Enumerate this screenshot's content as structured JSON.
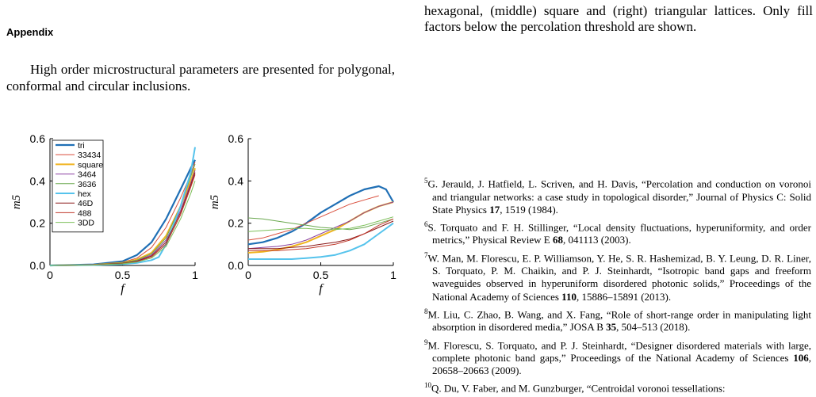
{
  "appendix": {
    "heading": "Appendix",
    "paragraph": "High order microstructural parameters are presented for polygonal, conformal and circular inclusions."
  },
  "caption_tail": "hexagonal, (middle) square and (right) triangular lattices. Only fill factors below the percolation threshold are shown.",
  "references": [
    {
      "num": "5",
      "text": "G. Jerauld, J. Hatfield, L. Scriven,  and H. Davis, “Percolation and conduction on voronoi and triangular networks: a case study in topological disorder,” Journal of Physics C: Solid State Physics ",
      "vol": "17",
      "rest": ", 1519 (1984)."
    },
    {
      "num": "6",
      "text": "S. Torquato and F. H. Stillinger, “Local density fluctuations, hyperuniformity, and order metrics,” Physical Review E ",
      "vol": "68",
      "rest": ", 041113 (2003)."
    },
    {
      "num": "7",
      "text": "W. Man, M. Florescu, E. P. Williamson, Y. He, S. R. Hashemizad, B. Y. Leung, D. R. Liner, S. Torquato, P. M. Chaikin,  and P. J. Steinhardt, “Isotropic band gaps and freeform waveguides observed in hyperuniform disordered photonic solids,” Proceedings of the National Academy of Sciences ",
      "vol": "110",
      "rest": ", 15886–15891 (2013)."
    },
    {
      "num": "8",
      "text": "M. Liu, C. Zhao, B. Wang,  and X. Fang, “Role of short-range order in manipulating light absorption in disordered media,” JOSA B ",
      "vol": "35",
      "rest": ", 504–513 (2018)."
    },
    {
      "num": "9",
      "text": "M. Florescu, S. Torquato,  and P. J. Steinhardt, “Designer disordered materials with large, complete photonic band gaps,” Proceedings of the National Academy of Sciences ",
      "vol": "106",
      "rest": ", 20658–20663 (2009)."
    },
    {
      "num": "10",
      "text": "Q. Du, V. Faber,  and M. Gunzburger, “Centroidal voronoi tessellations:",
      "vol": "",
      "rest": ""
    }
  ],
  "chart_data": [
    {
      "type": "line",
      "xlabel": "f",
      "ylabel": "m5",
      "xlim": [
        0,
        1
      ],
      "ylim": [
        0,
        0.6
      ],
      "xticks": [
        "0",
        "0.5",
        "1"
      ],
      "yticks": [
        "0.0",
        "0.2",
        "0.4",
        "0.6"
      ],
      "legend_position": "top-left",
      "series": [
        {
          "name": "tri",
          "color": "#1f6fb5",
          "width": 2.2,
          "x": [
            0,
            0.3,
            0.5,
            0.6,
            0.7,
            0.8,
            0.9,
            0.97,
            1.0
          ],
          "y": [
            0,
            0.005,
            0.02,
            0.05,
            0.11,
            0.22,
            0.36,
            0.46,
            0.5
          ]
        },
        {
          "name": "33434",
          "color": "#d94f3d",
          "width": 1,
          "x": [
            0,
            0.3,
            0.5,
            0.6,
            0.7,
            0.8,
            0.9,
            0.97,
            1.0
          ],
          "y": [
            0,
            0.004,
            0.015,
            0.035,
            0.085,
            0.18,
            0.32,
            0.43,
            0.49
          ]
        },
        {
          "name": "square",
          "color": "#f0b420",
          "width": 2,
          "x": [
            0,
            0.3,
            0.5,
            0.6,
            0.7,
            0.8,
            0.9,
            0.97,
            1.0
          ],
          "y": [
            0,
            0.003,
            0.012,
            0.028,
            0.06,
            0.14,
            0.28,
            0.4,
            0.46
          ]
        },
        {
          "name": "3464",
          "color": "#8a3fa0",
          "width": 1,
          "x": [
            0,
            0.3,
            0.5,
            0.6,
            0.7,
            0.8,
            0.9,
            0.97,
            1.0
          ],
          "y": [
            0,
            0.003,
            0.01,
            0.022,
            0.05,
            0.12,
            0.26,
            0.39,
            0.45
          ]
        },
        {
          "name": "3636",
          "color": "#6aa84f",
          "width": 1,
          "x": [
            0,
            0.3,
            0.5,
            0.6,
            0.7,
            0.8,
            0.9,
            0.97,
            1.0
          ],
          "y": [
            0,
            0.004,
            0.012,
            0.025,
            0.055,
            0.13,
            0.28,
            0.42,
            0.48
          ]
        },
        {
          "name": "hex",
          "color": "#55c3ec",
          "width": 2,
          "x": [
            0,
            0.3,
            0.5,
            0.6,
            0.7,
            0.75,
            0.8,
            0.9,
            0.97,
            1.0
          ],
          "y": [
            0,
            0.002,
            0.006,
            0.012,
            0.025,
            0.04,
            0.1,
            0.28,
            0.44,
            0.56
          ]
        },
        {
          "name": "46D",
          "color": "#8b1a1a",
          "width": 1,
          "x": [
            0,
            0.3,
            0.5,
            0.6,
            0.7,
            0.8,
            0.9,
            0.97,
            1.0
          ],
          "y": [
            0,
            0.003,
            0.01,
            0.02,
            0.045,
            0.11,
            0.25,
            0.38,
            0.44
          ]
        },
        {
          "name": "488",
          "color": "#c0392b",
          "width": 1,
          "x": [
            0,
            0.3,
            0.5,
            0.6,
            0.7,
            0.8,
            0.9,
            0.97,
            1.0
          ],
          "y": [
            0,
            0.003,
            0.009,
            0.018,
            0.04,
            0.1,
            0.24,
            0.37,
            0.43
          ]
        },
        {
          "name": "3DD",
          "color": "#7dbf5a",
          "width": 1,
          "x": [
            0,
            0.3,
            0.5,
            0.6,
            0.7,
            0.8,
            0.9,
            0.97,
            1.0
          ],
          "y": [
            0,
            0.002,
            0.008,
            0.016,
            0.035,
            0.09,
            0.22,
            0.34,
            0.4
          ]
        }
      ]
    },
    {
      "type": "line",
      "xlabel": "f",
      "ylabel": "m5",
      "xlim": [
        0,
        1
      ],
      "ylim": [
        0,
        0.6
      ],
      "xticks": [
        "0",
        "0.5",
        "1"
      ],
      "yticks": [
        "0.0",
        "0.2",
        "0.4",
        "0.6"
      ],
      "series": [
        {
          "color": "#1f6fb5",
          "width": 2.2,
          "x": [
            0,
            0.1,
            0.2,
            0.3,
            0.4,
            0.5,
            0.6,
            0.7,
            0.8,
            0.9,
            0.95,
            1.0
          ],
          "y": [
            0.1,
            0.11,
            0.13,
            0.16,
            0.2,
            0.25,
            0.29,
            0.33,
            0.36,
            0.375,
            0.36,
            0.3
          ]
        },
        {
          "color": "#d94f3d",
          "width": 1,
          "x": [
            0,
            0.1,
            0.2,
            0.3,
            0.4,
            0.5,
            0.6,
            0.7,
            0.8,
            0.9
          ],
          "y": [
            0.12,
            0.13,
            0.15,
            0.17,
            0.2,
            0.23,
            0.26,
            0.29,
            0.31,
            0.33
          ]
        },
        {
          "color": "#f0b420",
          "width": 2,
          "x": [
            0,
            0.1,
            0.2,
            0.3,
            0.4,
            0.5,
            0.6,
            0.7,
            0.8,
            0.9,
            1.0
          ],
          "y": [
            0.06,
            0.065,
            0.075,
            0.09,
            0.11,
            0.14,
            0.17,
            0.21,
            0.25,
            0.28,
            0.3
          ]
        },
        {
          "color": "#8a3fa0",
          "width": 1,
          "x": [
            0,
            0.1,
            0.2,
            0.3,
            0.4,
            0.5,
            0.6,
            0.7,
            0.8,
            0.9,
            1.0
          ],
          "y": [
            0.08,
            0.085,
            0.09,
            0.1,
            0.12,
            0.15,
            0.18,
            0.21,
            0.25,
            0.28,
            0.3
          ]
        },
        {
          "color": "#6aa84f",
          "width": 1,
          "x": [
            0,
            0.1,
            0.2,
            0.3,
            0.4,
            0.5,
            0.6,
            0.7,
            0.8,
            0.9,
            1.0
          ],
          "y": [
            0.225,
            0.22,
            0.21,
            0.2,
            0.19,
            0.18,
            0.175,
            0.17,
            0.18,
            0.2,
            0.22
          ]
        },
        {
          "color": "#55c3ec",
          "width": 2,
          "x": [
            0,
            0.1,
            0.2,
            0.3,
            0.4,
            0.5,
            0.6,
            0.7,
            0.8,
            0.9,
            1.0
          ],
          "y": [
            0.03,
            0.03,
            0.03,
            0.03,
            0.035,
            0.04,
            0.05,
            0.07,
            0.1,
            0.15,
            0.2
          ]
        },
        {
          "color": "#8b1a1a",
          "width": 1,
          "x": [
            0,
            0.1,
            0.2,
            0.3,
            0.4,
            0.5,
            0.6,
            0.7,
            0.8,
            0.9,
            1.0
          ],
          "y": [
            0.08,
            0.08,
            0.08,
            0.085,
            0.09,
            0.1,
            0.11,
            0.125,
            0.15,
            0.18,
            0.21
          ]
        },
        {
          "color": "#c0392b",
          "width": 1,
          "x": [
            0,
            0.1,
            0.2,
            0.3,
            0.4,
            0.5,
            0.6,
            0.7,
            0.8,
            0.9,
            1.0
          ],
          "y": [
            0.07,
            0.07,
            0.07,
            0.075,
            0.08,
            0.09,
            0.1,
            0.12,
            0.15,
            0.19,
            0.22
          ]
        },
        {
          "color": "#7dbf5a",
          "width": 1,
          "x": [
            0,
            0.1,
            0.2,
            0.3,
            0.4,
            0.5,
            0.6,
            0.7,
            0.8,
            0.9,
            1.0
          ],
          "y": [
            0.16,
            0.165,
            0.17,
            0.175,
            0.175,
            0.17,
            0.17,
            0.175,
            0.19,
            0.21,
            0.23
          ]
        }
      ]
    }
  ]
}
